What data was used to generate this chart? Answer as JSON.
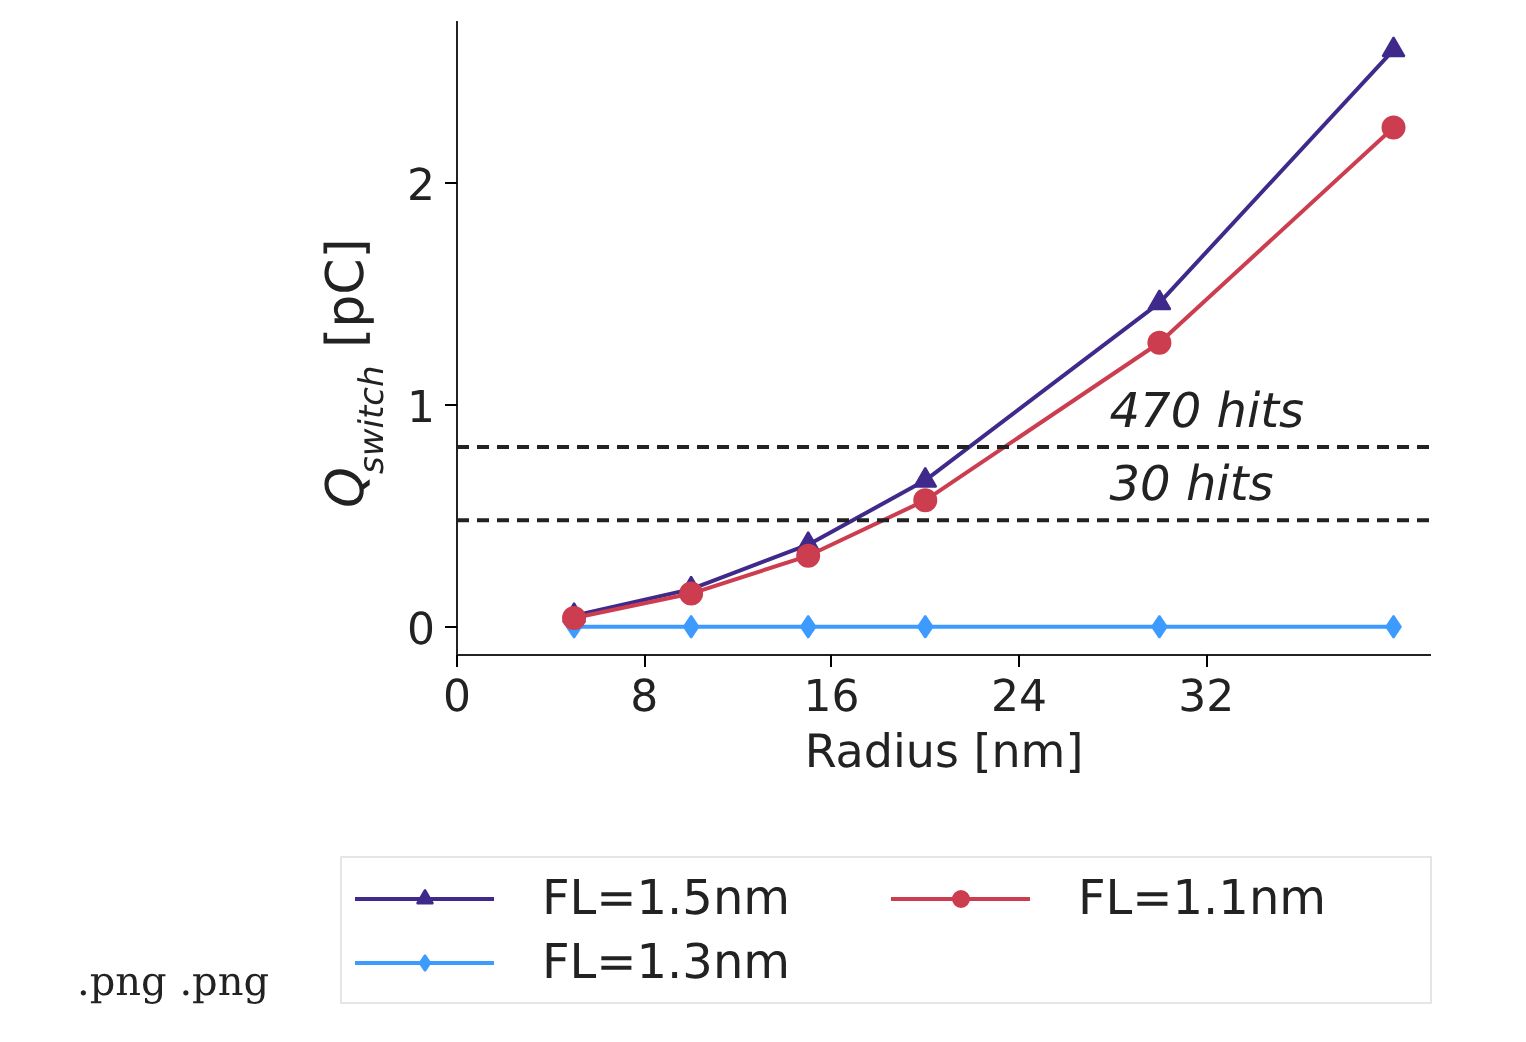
{
  "chart_data": {
    "type": "line",
    "xlabel": "Radius [nm]",
    "ylabel": "Q$_{switch}$ [pC]",
    "x": [
      5,
      10,
      15,
      20,
      30,
      40
    ],
    "series": [
      {
        "name": "FL=1.5nm",
        "color": "#3f2a8c",
        "marker": "triangle",
        "values": [
          0.05,
          0.17,
          0.37,
          0.66,
          1.46,
          2.6
        ]
      },
      {
        "name": "FL=1.3nm",
        "color": "#3d9bff",
        "marker": "diamond",
        "values": [
          0,
          0,
          0,
          0,
          0,
          0
        ]
      },
      {
        "name": "FL=1.1nm",
        "color": "#cc3d4f",
        "marker": "circle",
        "values": [
          0.04,
          0.15,
          0.32,
          0.57,
          1.28,
          2.25
        ]
      }
    ],
    "xlim": [
      0,
      41.6
    ],
    "ylim": [
      -0.127,
      2.73
    ],
    "xticks": [
      0,
      8,
      16,
      24,
      32
    ],
    "yticks": [
      0,
      1,
      2
    ],
    "ref_lines": [
      {
        "axis": "y",
        "value": 0.81,
        "label": "470 hits",
        "color": "#222222",
        "line_style": "dashed"
      },
      {
        "axis": "y",
        "value": 0.48,
        "label": "30 hits",
        "color": "#222222",
        "line_style": "dashed"
      }
    ],
    "legend": "bottom",
    "grid": false,
    "annotations": [
      ".png .png"
    ]
  }
}
